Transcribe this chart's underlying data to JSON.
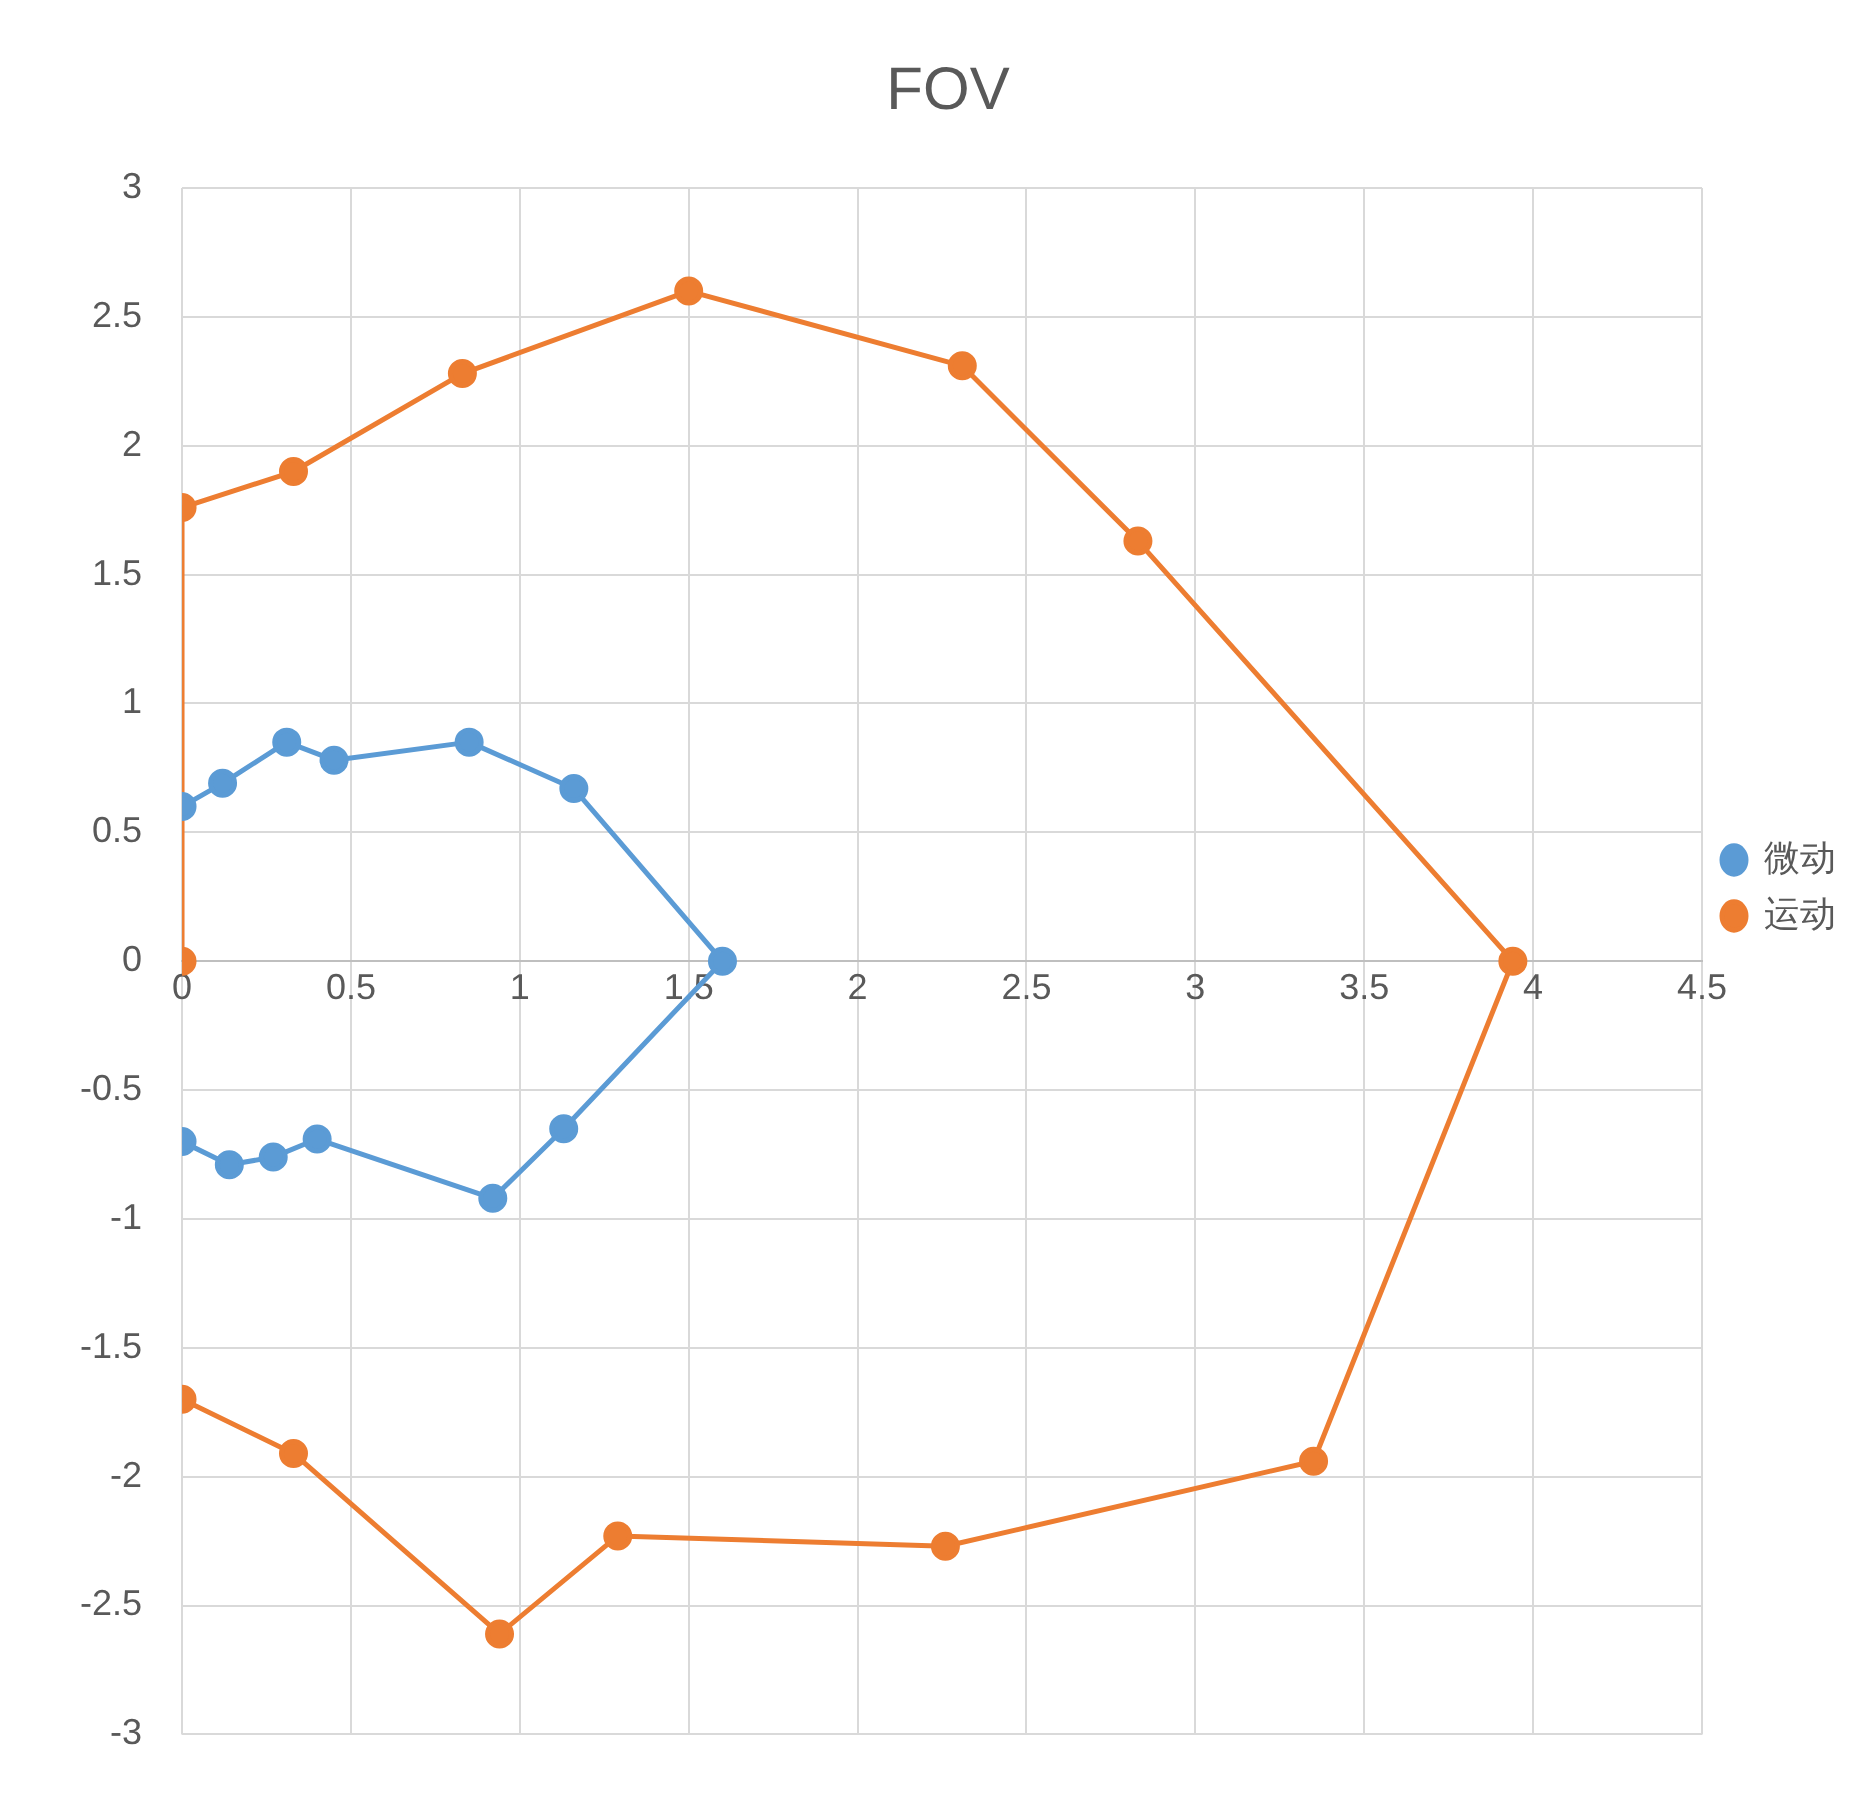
{
  "chart_data": {
    "type": "scatter",
    "title": "FOV",
    "xlim": [
      0,
      4.5
    ],
    "xticks": [
      0,
      0.5,
      1,
      1.5,
      2,
      2.5,
      3,
      3.5,
      4,
      4.5
    ],
    "ylim": [
      -3,
      3
    ],
    "yticks": [
      -3,
      -2.5,
      -2,
      -1.5,
      -1,
      -0.5,
      0,
      0.5,
      1,
      1.5,
      2,
      2.5,
      3
    ],
    "grid": true,
    "legend": "right",
    "marker": "circle",
    "line_style": "solid",
    "series": [
      {
        "name": "微动",
        "type": "line",
        "color": "#5b9bd5",
        "x": [
          0,
          0.12,
          0.31,
          0.45,
          0.85,
          1.16,
          1.6,
          1.13,
          0.92,
          0.4,
          0.27,
          0.14,
          0
        ],
        "values": [
          0.6,
          0.69,
          0.85,
          0.78,
          0.85,
          0.67,
          0,
          -0.65,
          -0.92,
          -0.69,
          -0.76,
          -0.79,
          -0.7
        ]
      },
      {
        "name": "运动",
        "type": "line",
        "color": "#ed7d31",
        "x": [
          0,
          0,
          0.33,
          0.83,
          1.5,
          2.31,
          2.83,
          3.94,
          3.35,
          2.26,
          1.29,
          0.94,
          0.33,
          0
        ],
        "values": [
          0,
          1.76,
          1.9,
          2.28,
          2.6,
          2.31,
          1.63,
          0,
          -1.94,
          -2.27,
          -2.23,
          -2.61,
          -1.91,
          -1.7
        ]
      }
    ]
  }
}
